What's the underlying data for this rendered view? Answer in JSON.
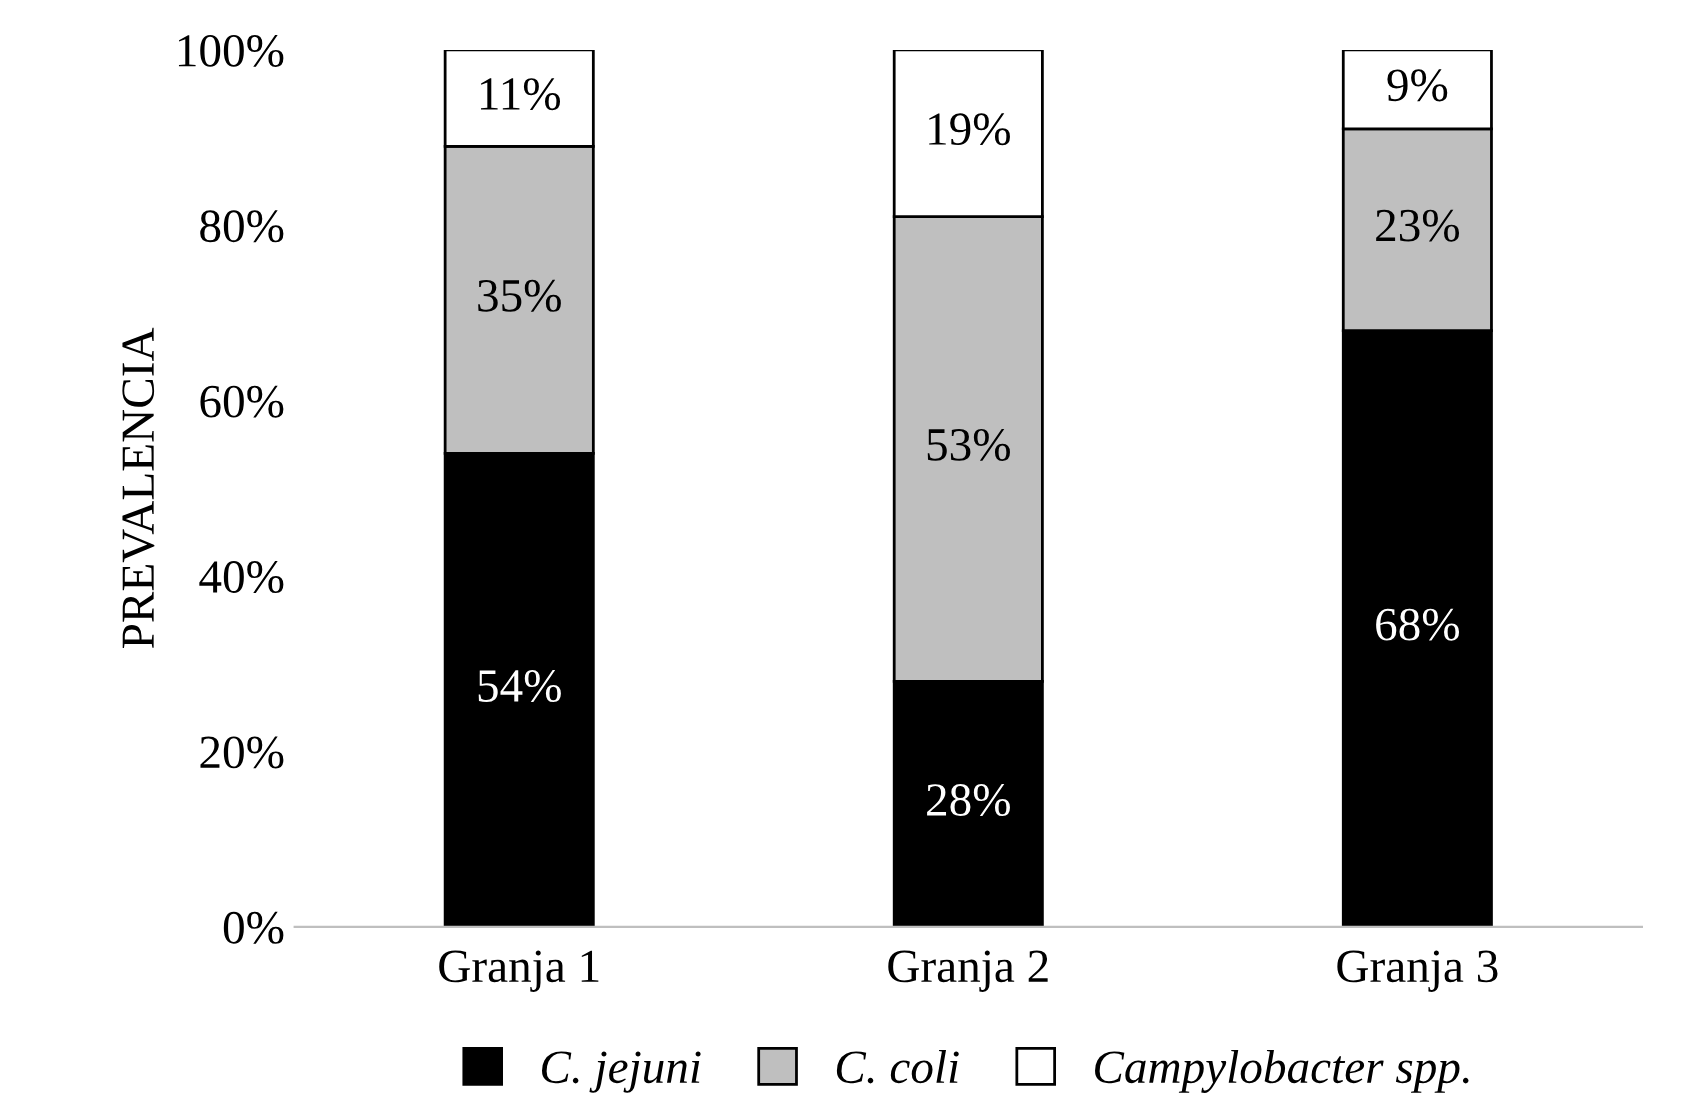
{
  "chart_data": {
    "type": "bar",
    "stacked": true,
    "ylabel": "PREVALENCIA",
    "categories": [
      "Granja 1",
      "Granja 2",
      "Granja 3"
    ],
    "series": [
      {
        "name": "C. jejuni",
        "color": "#000000",
        "values": [
          54,
          28,
          68
        ],
        "value_labels": [
          "54%",
          "28%",
          "68%"
        ]
      },
      {
        "name": "C. coli",
        "color": "#bfbfbf",
        "values": [
          35,
          53,
          23
        ],
        "value_labels": [
          "35%",
          "53%",
          "23%"
        ]
      },
      {
        "name": "Campylobacter spp.",
        "color": "#ffffff",
        "values": [
          11,
          19,
          9
        ],
        "value_labels": [
          "11%",
          "19%",
          "9%"
        ]
      }
    ],
    "ylim": [
      0,
      100
    ],
    "yticks": [
      {
        "value": 0,
        "label": "0%"
      },
      {
        "value": 20,
        "label": "20%"
      },
      {
        "value": 40,
        "label": "40%"
      },
      {
        "value": 60,
        "label": "60%"
      },
      {
        "value": 80,
        "label": "80%"
      },
      {
        "value": 100,
        "label": "100%"
      }
    ],
    "grid": false,
    "legend": "bottom"
  }
}
